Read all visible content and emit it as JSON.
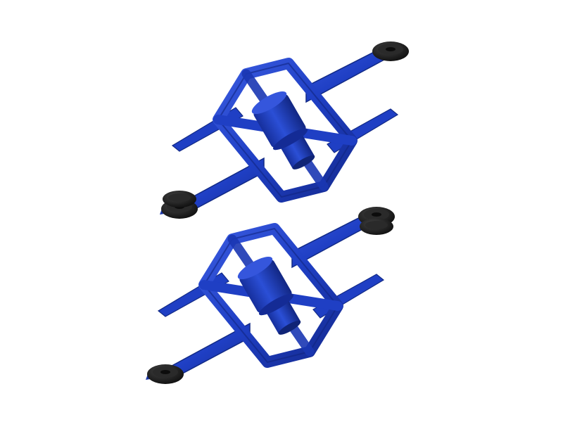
{
  "photo": {
    "subject": "",
    "colors": {
      "background": "#ffffff",
      "plastic": "#1f3fc4",
      "plastic_dark": "#142a8f",
      "plastic_light": "#3a5be0",
      "rubber": "#1a1a1a",
      "rubber_highlight": "#3a3a3a"
    },
    "items": [
      {
        "name": "upper-clip"
      },
      {
        "name": "lower-clip"
      }
    ]
  }
}
